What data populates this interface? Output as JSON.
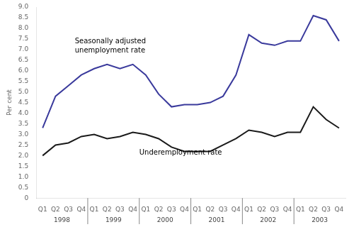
{
  "chart_data": {
    "type": "line",
    "ylabel": "Per cent",
    "categories": [
      "Q1",
      "Q2",
      "Q3",
      "Q4",
      "Q1",
      "Q2",
      "Q3",
      "Q4",
      "Q1",
      "Q2",
      "Q3",
      "Q4",
      "Q1",
      "Q2",
      "Q3",
      "Q4",
      "Q1",
      "Q2",
      "Q3",
      "Q4",
      "Q1",
      "Q2",
      "Q3",
      "Q4"
    ],
    "years": [
      "1998",
      "1998",
      "1998",
      "1998",
      "1999",
      "1999",
      "1999",
      "1999",
      "2000",
      "2000",
      "2000",
      "2000",
      "2001",
      "2001",
      "2001",
      "2001",
      "2002",
      "2002",
      "2002",
      "2002",
      "2003",
      "2003",
      "2003",
      "2003"
    ],
    "series": [
      {
        "color": "#3a3a9c",
        "values": [
          3.3,
          4.8,
          5.3,
          5.8,
          6.1,
          6.3,
          6.1,
          6.3,
          5.8,
          4.9,
          4.3,
          4.4,
          4.4,
          4.5,
          4.8,
          5.8,
          7.7,
          7.3,
          7.2,
          7.4,
          7.4,
          8.6,
          8.4,
          7.4
        ]
      },
      {
        "color": "#1a1a1a",
        "values": [
          2.0,
          2.5,
          2.6,
          2.9,
          3.0,
          2.8,
          2.9,
          3.1,
          3.0,
          2.8,
          2.4,
          2.2,
          2.2,
          2.2,
          2.5,
          2.8,
          3.2,
          3.1,
          2.9,
          3.1,
          3.1,
          4.3,
          3.7,
          3.3
        ]
      }
    ],
    "annotations": [
      {
        "text": "Seasonally adjusted\nunemployment rate",
        "x": 2.5,
        "y": 6.85
      },
      {
        "text": "Underemployment rate",
        "x": 7.5,
        "y": 2.05
      }
    ],
    "ylim": [
      0,
      9.0
    ],
    "yticks": [
      0,
      0.5,
      {
        "value": 1.0,
        "label": "1.0"
      },
      1.5,
      {
        "value": 2.0,
        "label": "2.0"
      },
      2.5,
      {
        "value": 3.0,
        "label": "3.0"
      },
      3.5,
      {
        "value": 4.0,
        "label": "4.0"
      },
      4.5,
      {
        "value": 5.0,
        "label": "5.0"
      },
      5.5,
      {
        "value": 6.0,
        "label": "6.0"
      },
      6.5,
      {
        "value": 7.0,
        "label": "7.0"
      },
      7.5,
      {
        "value": 8.0,
        "label": "8.0"
      },
      8.5,
      {
        "value": 9.0,
        "label": "9.0"
      }
    ],
    "grid": false
  }
}
